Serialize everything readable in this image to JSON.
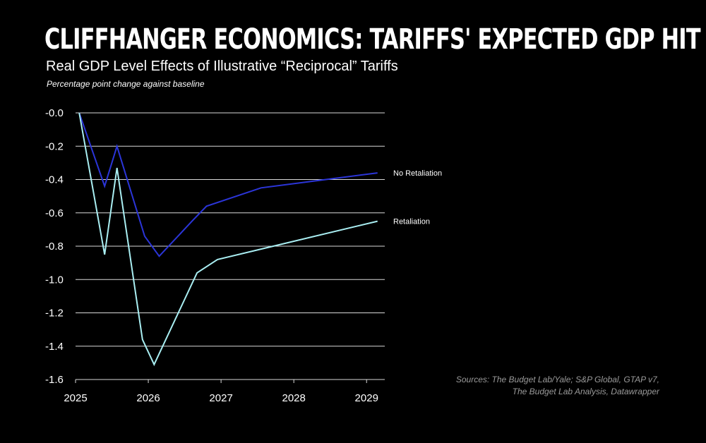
{
  "header": {
    "title": "CLIFFHANGER ECONOMICS: TARIFFS' EXPECTED GDP HIT",
    "subtitle": "Real GDP Level Effects of Illustrative “Reciprocal” Tariffs",
    "note": "Percentage point change against baseline"
  },
  "sources": {
    "line1": "Sources: The Budget Lab/Yale; S&P Global, GTAP v7,",
    "line2": "The Budget Lab Analysis, Datawrapper"
  },
  "chart_data": {
    "type": "line",
    "ylim": [
      -1.6,
      0.0
    ],
    "xlim": [
      2025.0,
      2029.25
    ],
    "yticks": [
      -0.0,
      -0.2,
      -0.4,
      -0.6,
      -0.8,
      -1.0,
      -1.2,
      -1.4,
      -1.6
    ],
    "ytick_labels": [
      "-0.0",
      "-0.2",
      "-0.4",
      "-0.6",
      "-0.8",
      "-1.0",
      "-1.2",
      "-1.4",
      "-1.6"
    ],
    "xticks": [
      2025,
      2026,
      2027,
      2028,
      2029
    ],
    "xtick_labels": [
      "2025",
      "2026",
      "2027",
      "2028",
      "2029"
    ],
    "grid": true,
    "series": [
      {
        "name": "No Retaliation",
        "color": "#2b35d8",
        "x": [
          2025.05,
          2025.4,
          2025.57,
          2025.95,
          2026.15,
          2026.6,
          2026.8,
          2027.55,
          2029.15
        ],
        "y": [
          0.0,
          -0.44,
          -0.2,
          -0.74,
          -0.86,
          -0.65,
          -0.56,
          -0.45,
          -0.36
        ]
      },
      {
        "name": "Retaliation",
        "color": "#a9eef2",
        "x": [
          2025.05,
          2025.4,
          2025.57,
          2025.92,
          2026.08,
          2026.67,
          2026.95,
          2029.15
        ],
        "y": [
          0.0,
          -0.85,
          -0.33,
          -1.36,
          -1.51,
          -0.96,
          -0.88,
          -0.65
        ]
      }
    ]
  }
}
